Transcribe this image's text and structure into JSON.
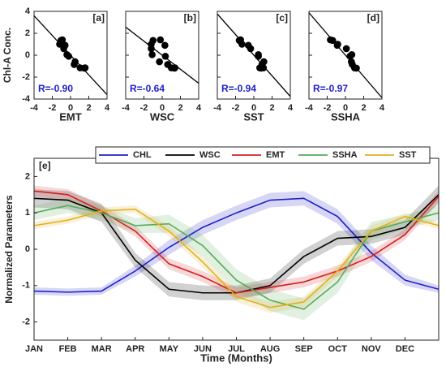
{
  "chart_data": [
    {
      "type": "scatter",
      "panel_label": "[a]",
      "xlabel": "EMT",
      "ylabel": "Chl-A Conc.",
      "annotation": "R=-0.90",
      "x": [
        1.6,
        1.5,
        1.05,
        0.5,
        -0.4,
        -0.75,
        -1.2,
        -1.05,
        -0.9,
        -0.6,
        -0.2,
        0.4
      ],
      "y": [
        -1.15,
        -1.18,
        -1.15,
        -0.6,
        0.05,
        0.6,
        1.0,
        1.35,
        1.4,
        0.9,
        -0.1,
        -0.85
      ],
      "fit": {
        "slope": -0.9,
        "intercept": 0
      },
      "color": "#000000",
      "xlim": [
        -4,
        4
      ],
      "ylim": [
        -4,
        4
      ],
      "xticks": [
        -4,
        -2,
        0,
        2,
        4
      ],
      "yticks": [
        -4,
        -2,
        0,
        2,
        4
      ],
      "ytick_labels": true
    },
    {
      "type": "scatter",
      "panel_label": "[b]",
      "xlabel": "WSC",
      "annotation": "R=-0.64",
      "x": [
        1.4,
        1.35,
        1.0,
        -0.3,
        -1.1,
        -1.2,
        -1.2,
        -1.0,
        -0.2,
        0.3,
        0.35,
        0.6
      ],
      "y": [
        -1.15,
        -1.18,
        -1.15,
        -0.6,
        0.05,
        0.6,
        1.0,
        1.35,
        1.4,
        0.9,
        -0.1,
        -0.85
      ],
      "fit": {
        "slope": -0.64,
        "intercept": 0
      },
      "color": "#000000",
      "xlim": [
        -4,
        4
      ],
      "ylim": [
        -4,
        4
      ],
      "xticks": [
        -4,
        -2,
        0,
        2,
        4
      ],
      "yticks": [
        -4,
        -2,
        0,
        2,
        4
      ],
      "ytick_labels": false
    },
    {
      "type": "scatter",
      "panel_label": "[c]",
      "xlabel": "SST",
      "annotation": "R=-0.94",
      "x": [
        0.65,
        0.8,
        1.05,
        1.1,
        0.5,
        -0.35,
        -1.3,
        -1.6,
        -1.45,
        -0.6,
        0.5,
        0.9
      ],
      "y": [
        -1.15,
        -1.18,
        -1.15,
        -0.6,
        0.05,
        0.6,
        1.0,
        1.35,
        1.4,
        0.9,
        -0.1,
        -0.85
      ],
      "fit": {
        "slope": -0.94,
        "intercept": 0
      },
      "color": "#000000",
      "xlim": [
        -4,
        4
      ],
      "ylim": [
        -4,
        4
      ],
      "xticks": [
        -4,
        -2,
        0,
        2,
        4
      ],
      "yticks": [
        -4,
        -2,
        0,
        2,
        4
      ],
      "ytick_labels": false
    },
    {
      "type": "scatter",
      "panel_label": "[d]",
      "xlabel": "SSHA",
      "annotation": "R=-0.97",
      "x": [
        1.0,
        1.2,
        1.0,
        0.65,
        0.7,
        0.1,
        -0.85,
        -1.4,
        -1.65,
        -0.9,
        0.5,
        0.75
      ],
      "y": [
        -1.15,
        -1.18,
        -1.15,
        -0.6,
        0.05,
        0.6,
        1.0,
        1.35,
        1.4,
        0.9,
        -0.1,
        -0.85
      ],
      "fit": {
        "slope": -0.97,
        "intercept": 0
      },
      "color": "#000000",
      "xlim": [
        -4,
        4
      ],
      "ylim": [
        -4,
        4
      ],
      "xticks": [
        -4,
        -2,
        0,
        2,
        4
      ],
      "yticks": [
        -4,
        -2,
        0,
        2,
        4
      ],
      "ytick_labels": false
    },
    {
      "type": "line",
      "panel_label": "[e]",
      "xlabel": "Time (Months)",
      "ylabel": "Normalized Parameters",
      "x": [
        1,
        2,
        3,
        4,
        5,
        6,
        7,
        8,
        9,
        10,
        11,
        12,
        13
      ],
      "xlim": [
        1,
        13
      ],
      "ylim": [
        -2.5,
        2.5
      ],
      "xticks": [
        {
          "value": 1,
          "label": "JAN"
        },
        {
          "value": 2,
          "label": "FEB"
        },
        {
          "value": 3,
          "label": "MAR"
        },
        {
          "value": 4,
          "label": "APR"
        },
        {
          "value": 5,
          "label": "MAY"
        },
        {
          "value": 6,
          "label": "JUN"
        },
        {
          "value": 7,
          "label": "JUL"
        },
        {
          "value": 8,
          "label": "AUG"
        },
        {
          "value": 9,
          "label": "SEP"
        },
        {
          "value": 10,
          "label": "OCT"
        },
        {
          "value": 11,
          "label": "NOV"
        },
        {
          "value": 12,
          "label": "DEC"
        }
      ],
      "yticks": [
        -2,
        -1,
        0,
        1,
        2
      ],
      "legend": "top",
      "series": [
        {
          "name": "CHL",
          "color": "#1f1fc8",
          "values": [
            -1.15,
            -1.18,
            -1.15,
            -0.6,
            0.05,
            0.6,
            1.0,
            1.35,
            1.4,
            0.9,
            -0.1,
            -0.85,
            -1.1
          ],
          "errors": [
            0.1,
            0.1,
            0.1,
            0.15,
            0.2,
            0.2,
            0.2,
            0.2,
            0.2,
            0.2,
            0.2,
            0.15,
            0.1
          ]
        },
        {
          "name": "WSC",
          "color": "#000000",
          "values": [
            1.4,
            1.35,
            1.0,
            -0.3,
            -1.1,
            -1.2,
            -1.2,
            -1.0,
            -0.2,
            0.3,
            0.35,
            0.6,
            1.5
          ],
          "errors": [
            0.25,
            0.25,
            0.25,
            0.2,
            0.2,
            0.2,
            0.2,
            0.2,
            0.2,
            0.2,
            0.2,
            0.2,
            0.25
          ]
        },
        {
          "name": "EMT",
          "color": "#d42020",
          "values": [
            1.6,
            1.5,
            1.05,
            0.5,
            -0.4,
            -0.75,
            -1.2,
            -1.05,
            -0.9,
            -0.6,
            -0.2,
            0.4,
            1.45
          ],
          "errors": [
            0.15,
            0.15,
            0.15,
            0.15,
            0.15,
            0.15,
            0.15,
            0.15,
            0.15,
            0.15,
            0.15,
            0.15,
            0.15
          ]
        },
        {
          "name": "SSHA",
          "color": "#5aaa5a",
          "values": [
            1.0,
            1.2,
            1.0,
            0.65,
            0.7,
            0.1,
            -0.85,
            -1.4,
            -1.65,
            -0.9,
            0.5,
            0.75,
            1.0
          ],
          "errors": [
            0.2,
            0.2,
            0.2,
            0.2,
            0.25,
            0.3,
            0.3,
            0.3,
            0.3,
            0.3,
            0.25,
            0.2,
            0.2
          ]
        },
        {
          "name": "SST",
          "color": "#e0b020",
          "values": [
            0.65,
            0.8,
            1.05,
            1.1,
            0.5,
            -0.35,
            -1.3,
            -1.6,
            -1.45,
            -0.6,
            0.5,
            0.9,
            0.65
          ],
          "errors": [
            0.1,
            0.1,
            0.1,
            0.1,
            0.15,
            0.15,
            0.15,
            0.15,
            0.15,
            0.15,
            0.15,
            0.1,
            0.1
          ]
        }
      ]
    }
  ]
}
